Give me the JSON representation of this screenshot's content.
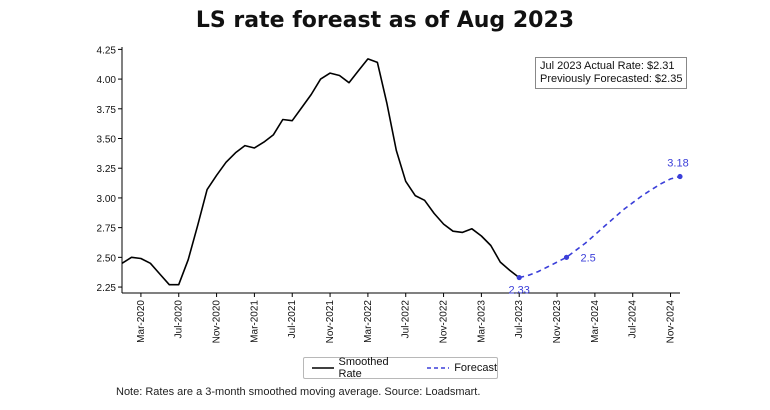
{
  "chart_data": {
    "type": "line",
    "title": "LS rate foreast as of Aug 2023",
    "xlabel": "",
    "ylabel": "",
    "ylim": [
      2.2,
      4.27
    ],
    "yticks": [
      2.25,
      2.5,
      2.75,
      3.0,
      3.25,
      3.5,
      3.75,
      4.0,
      4.25
    ],
    "ytick_labels": [
      "2.25",
      "2.50",
      "2.75",
      "3.00",
      "3.25",
      "3.50",
      "3.75",
      "4.00",
      "4.25"
    ],
    "xtick_labels": [
      "Mar-2020",
      "Jul-2020",
      "Nov-2020",
      "Mar-2021",
      "Jul-2021",
      "Nov-2021",
      "Mar-2022",
      "Jul-2022",
      "Nov-2022",
      "Mar-2023",
      "Jul-2023",
      "Nov-2023",
      "Mar-2024",
      "Jul-2024",
      "Nov-2024"
    ],
    "grid": false,
    "legend_position": "bottom-center",
    "series": [
      {
        "name": "Smoothed Rate",
        "color": "#000000",
        "style": "solid",
        "x": [
          "2020-01",
          "2020-02",
          "2020-03",
          "2020-04",
          "2020-05",
          "2020-06",
          "2020-07",
          "2020-08",
          "2020-09",
          "2020-10",
          "2020-11",
          "2020-12",
          "2021-01",
          "2021-02",
          "2021-03",
          "2021-04",
          "2021-05",
          "2021-06",
          "2021-07",
          "2021-08",
          "2021-09",
          "2021-10",
          "2021-11",
          "2021-12",
          "2022-01",
          "2022-02",
          "2022-03",
          "2022-04",
          "2022-05",
          "2022-06",
          "2022-07",
          "2022-08",
          "2022-09",
          "2022-10",
          "2022-11",
          "2022-12",
          "2023-01",
          "2023-02",
          "2023-03",
          "2023-04",
          "2023-05",
          "2023-06",
          "2023-07"
        ],
        "values": [
          2.45,
          2.5,
          2.49,
          2.45,
          2.36,
          2.27,
          2.27,
          2.48,
          2.77,
          3.07,
          3.19,
          3.3,
          3.38,
          3.44,
          3.42,
          3.47,
          3.53,
          3.66,
          3.65,
          3.76,
          3.87,
          4.0,
          4.05,
          4.03,
          3.97,
          4.07,
          4.17,
          4.14,
          3.8,
          3.4,
          3.14,
          3.02,
          2.98,
          2.87,
          2.78,
          2.72,
          2.71,
          2.74,
          2.68,
          2.6,
          2.46,
          2.39,
          2.33
        ]
      },
      {
        "name": "Forecast",
        "color": "#3b3fd9",
        "style": "dashed",
        "x": [
          "2023-07",
          "2023-08",
          "2023-09",
          "2023-10",
          "2023-11",
          "2023-12",
          "2024-01",
          "2024-02",
          "2024-03",
          "2024-04",
          "2024-05",
          "2024-06",
          "2024-07",
          "2024-08",
          "2024-09",
          "2024-10",
          "2024-11",
          "2024-12"
        ],
        "values": [
          2.33,
          2.35,
          2.38,
          2.42,
          2.46,
          2.5,
          2.56,
          2.62,
          2.69,
          2.76,
          2.83,
          2.9,
          2.96,
          3.02,
          3.07,
          3.12,
          3.16,
          3.18
        ]
      }
    ],
    "data_labels": [
      {
        "x": "2023-07",
        "value": 2.33,
        "text": "2.33"
      },
      {
        "x": "2023-12",
        "value": 2.5,
        "text": "2.5"
      },
      {
        "x": "2024-12",
        "value": 3.18,
        "text": "3.18"
      }
    ],
    "annotation_lines": [
      "Jul 2023 Actual Rate: $2.31",
      "Previously Forecasted: $2.35"
    ],
    "note": "Note: Rates are a 3-month smoothed moving average. Source: Loadsmart."
  }
}
